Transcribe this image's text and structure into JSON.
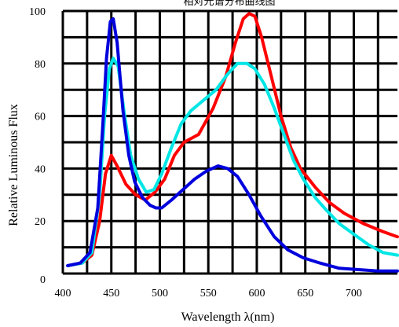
{
  "chart_data": {
    "type": "line",
    "title": "相对光谱分布曲线图",
    "xlabel": "Wavelength λ(nm)",
    "ylabel": "Relative Luminous Flux",
    "xlim": [
      400,
      745
    ],
    "ylim": [
      0,
      100
    ],
    "x_ticks": [
      400,
      450,
      500,
      550,
      600,
      650,
      700
    ],
    "y_ticks": [
      0,
      20,
      40,
      60,
      80,
      100
    ],
    "grid": true,
    "legend": "none",
    "series": [
      {
        "color": "#ff0000",
        "points": [
          [
            405,
            3
          ],
          [
            420,
            4
          ],
          [
            430,
            7
          ],
          [
            438,
            20
          ],
          [
            444,
            38
          ],
          [
            450,
            45
          ],
          [
            456,
            41
          ],
          [
            465,
            34
          ],
          [
            475,
            30
          ],
          [
            485,
            28
          ],
          [
            495,
            31
          ],
          [
            505,
            36
          ],
          [
            515,
            45
          ],
          [
            525,
            50
          ],
          [
            540,
            53
          ],
          [
            555,
            63
          ],
          [
            568,
            75
          ],
          [
            578,
            88
          ],
          [
            586,
            97
          ],
          [
            592,
            99
          ],
          [
            598,
            98
          ],
          [
            605,
            90
          ],
          [
            615,
            75
          ],
          [
            625,
            60
          ],
          [
            635,
            48
          ],
          [
            645,
            40
          ],
          [
            660,
            33
          ],
          [
            675,
            27
          ],
          [
            690,
            23
          ],
          [
            710,
            19
          ],
          [
            730,
            16
          ],
          [
            745,
            14
          ]
        ]
      },
      {
        "color": "#00e6e6",
        "points": [
          [
            405,
            3
          ],
          [
            420,
            4
          ],
          [
            430,
            8
          ],
          [
            438,
            30
          ],
          [
            443,
            60
          ],
          [
            448,
            78
          ],
          [
            452,
            82
          ],
          [
            457,
            79
          ],
          [
            463,
            62
          ],
          [
            470,
            45
          ],
          [
            478,
            36
          ],
          [
            486,
            31
          ],
          [
            494,
            32
          ],
          [
            502,
            38
          ],
          [
            512,
            48
          ],
          [
            522,
            57
          ],
          [
            532,
            62
          ],
          [
            545,
            66
          ],
          [
            558,
            70
          ],
          [
            570,
            76
          ],
          [
            580,
            80
          ],
          [
            590,
            80
          ],
          [
            598,
            78
          ],
          [
            608,
            72
          ],
          [
            618,
            63
          ],
          [
            628,
            53
          ],
          [
            638,
            43
          ],
          [
            648,
            36
          ],
          [
            660,
            29
          ],
          [
            672,
            24
          ],
          [
            685,
            19
          ],
          [
            700,
            15
          ],
          [
            715,
            11
          ],
          [
            730,
            8
          ],
          [
            745,
            7
          ]
        ]
      },
      {
        "color": "#0000dd",
        "points": [
          [
            405,
            3
          ],
          [
            418,
            4
          ],
          [
            428,
            8
          ],
          [
            436,
            25
          ],
          [
            441,
            55
          ],
          [
            445,
            82
          ],
          [
            449,
            96
          ],
          [
            452,
            97
          ],
          [
            456,
            88
          ],
          [
            462,
            62
          ],
          [
            468,
            45
          ],
          [
            474,
            35
          ],
          [
            482,
            29
          ],
          [
            490,
            26
          ],
          [
            496,
            25
          ],
          [
            502,
            25
          ],
          [
            512,
            28
          ],
          [
            524,
            32
          ],
          [
            536,
            36
          ],
          [
            548,
            39
          ],
          [
            560,
            41
          ],
          [
            570,
            40
          ],
          [
            580,
            37
          ],
          [
            592,
            30
          ],
          [
            604,
            22
          ],
          [
            618,
            14
          ],
          [
            632,
            9
          ],
          [
            648,
            6
          ],
          [
            665,
            4
          ],
          [
            685,
            2
          ],
          [
            705,
            1.5
          ],
          [
            725,
            1
          ],
          [
            745,
            1
          ]
        ]
      }
    ]
  }
}
